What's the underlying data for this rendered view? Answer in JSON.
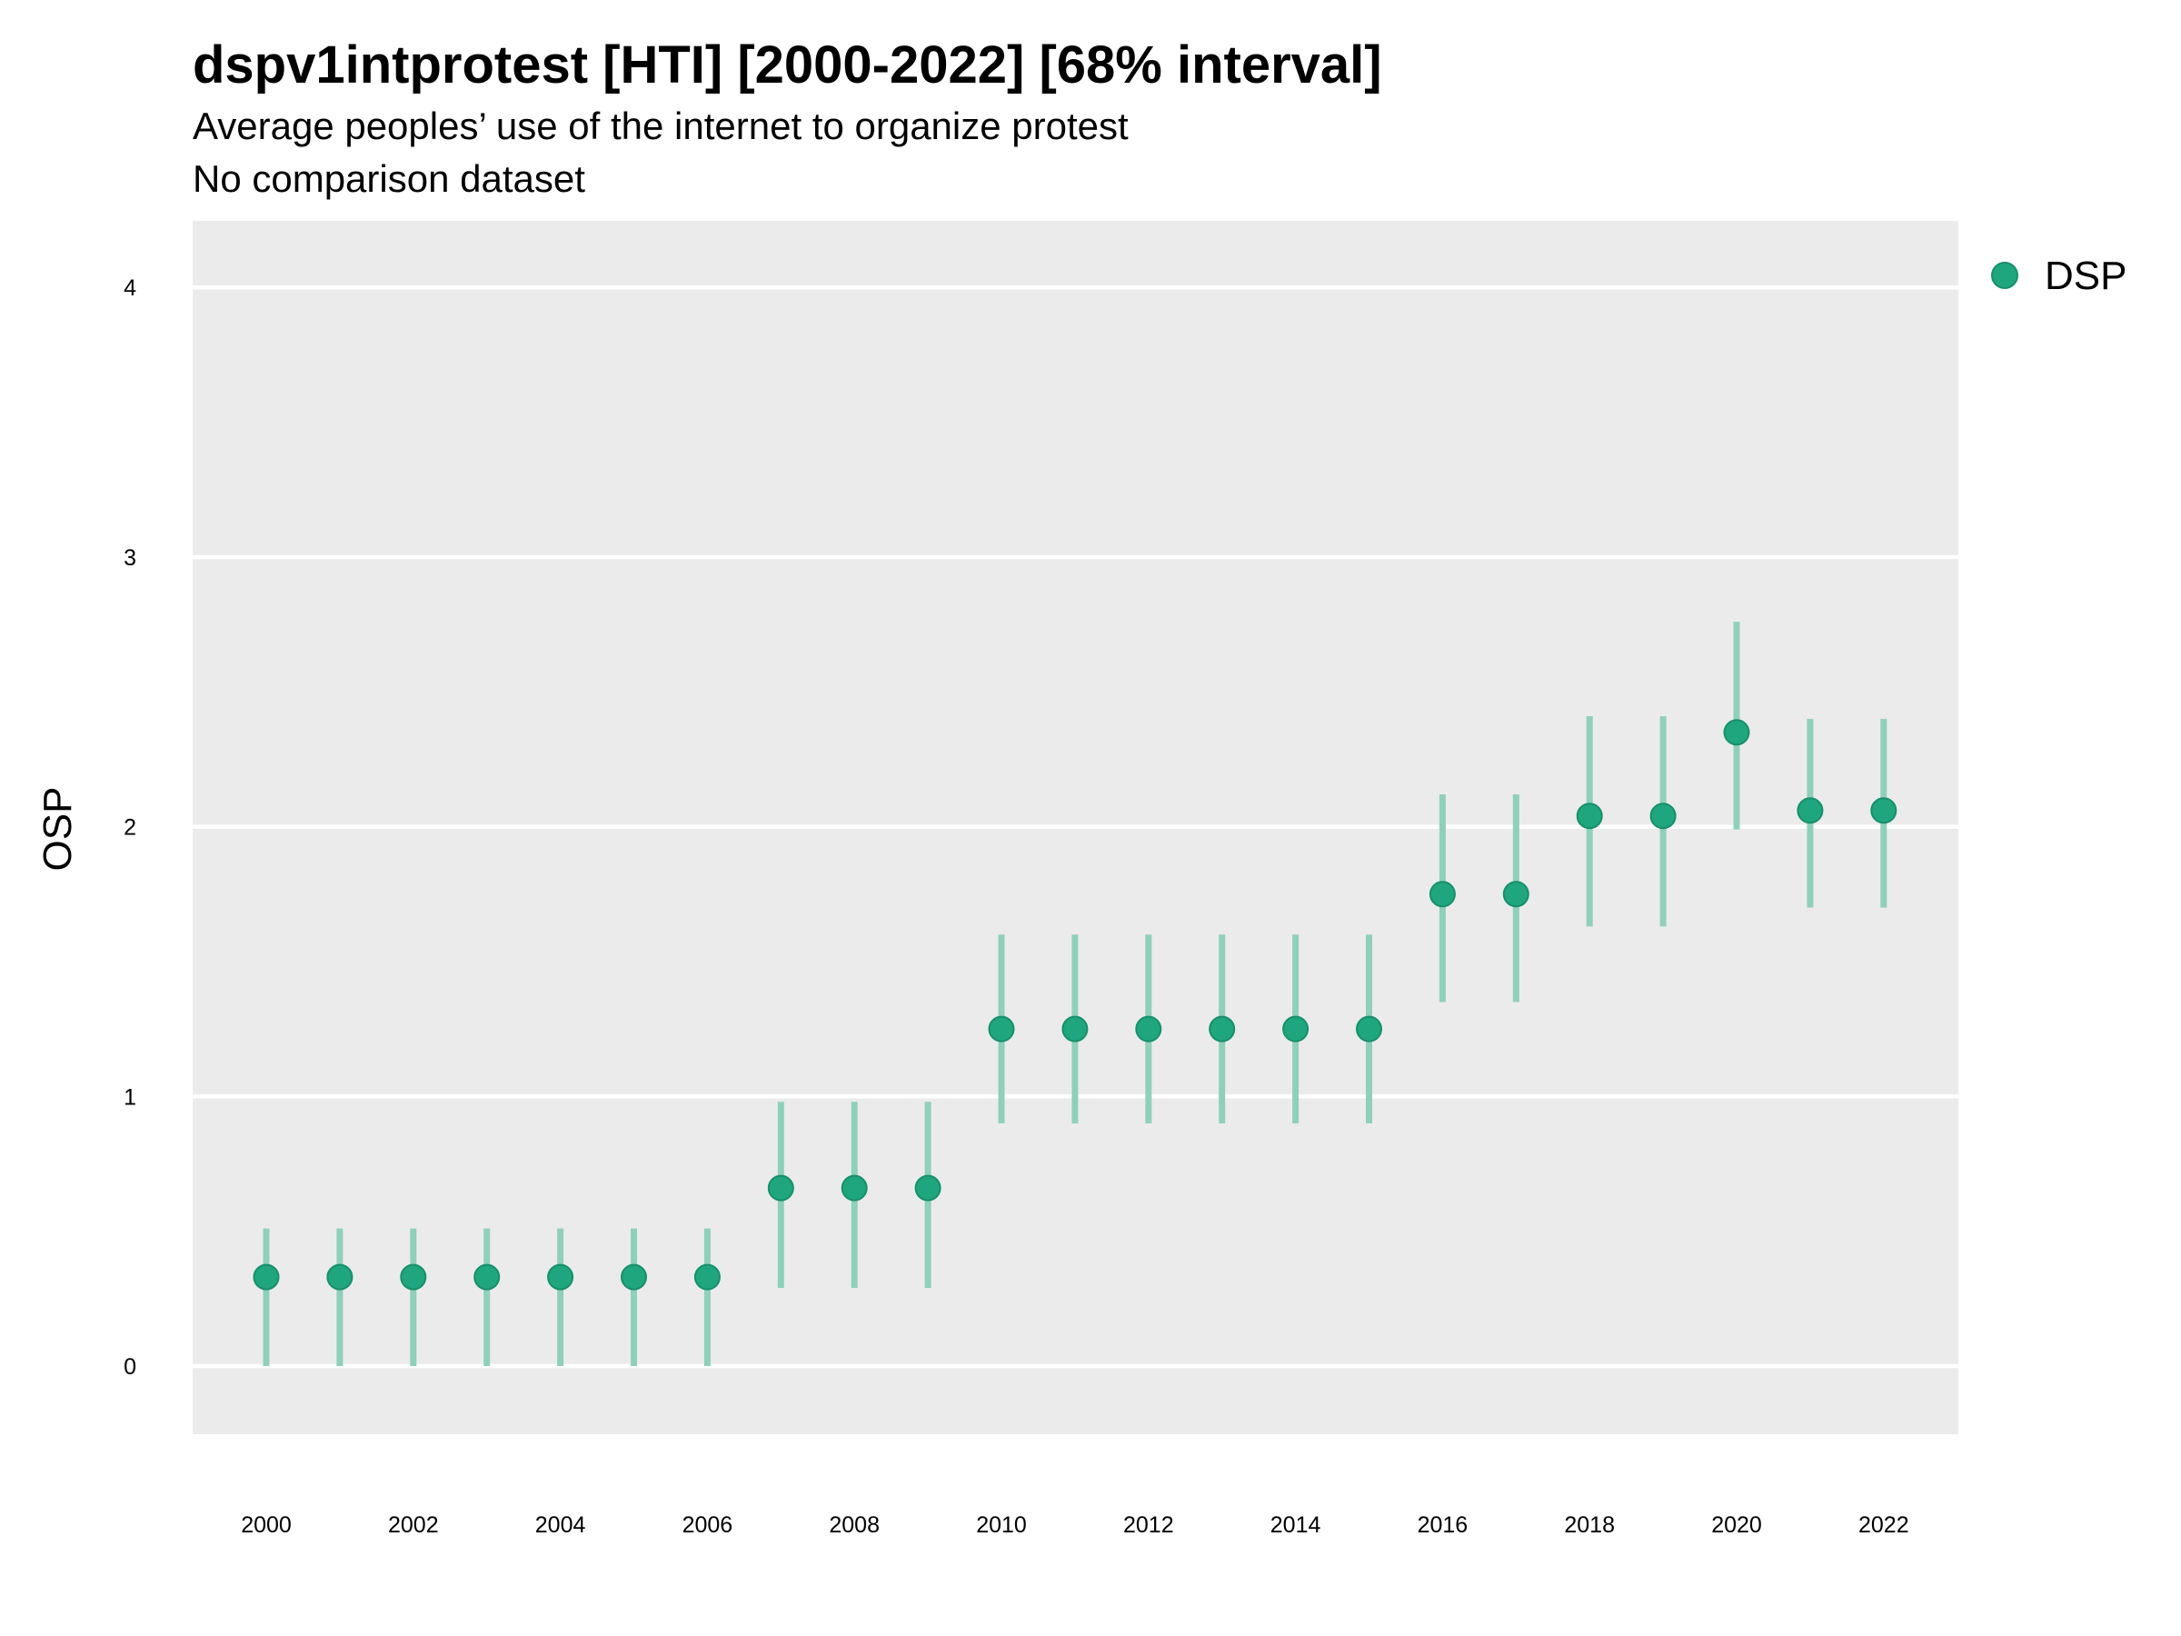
{
  "title": "dspv1intprotest [HTI] [2000-2022] [68% interval]",
  "subtitle": [
    "Average peoples’ use of the internet to organize protest",
    "No comparison dataset"
  ],
  "colors": {
    "panel_background": "#ebebeb",
    "gridline": "#ffffff",
    "point": "#1fa67f",
    "interval": "#8fd0bb"
  },
  "chart_data": {
    "type": "scatter",
    "xlabel": "",
    "ylabel": "OSP",
    "ylim": [
      -0.25,
      4.25
    ],
    "xlim": [
      1999,
      2023
    ],
    "grid": true,
    "legend_position": "top-right",
    "y_ticks": [
      "0",
      "1",
      "2",
      "3",
      "4"
    ],
    "x_ticks": [
      "2000",
      "2002",
      "2004",
      "2006",
      "2008",
      "2010",
      "2012",
      "2014",
      "2016",
      "2018",
      "2020",
      "2022"
    ],
    "series": [
      {
        "name": "DSP",
        "x": [
          2000,
          2001,
          2002,
          2003,
          2004,
          2005,
          2006,
          2007,
          2008,
          2009,
          2010,
          2011,
          2012,
          2013,
          2014,
          2015,
          2016,
          2017,
          2018,
          2019,
          2020,
          2021,
          2022
        ],
        "y": [
          0.33,
          0.33,
          0.33,
          0.33,
          0.33,
          0.33,
          0.33,
          0.66,
          0.66,
          0.66,
          1.25,
          1.25,
          1.25,
          1.25,
          1.25,
          1.25,
          1.75,
          1.75,
          2.04,
          2.04,
          2.35,
          2.06,
          2.06
        ],
        "lower": [
          0.0,
          0.0,
          0.0,
          0.0,
          0.0,
          0.0,
          0.0,
          0.29,
          0.29,
          0.29,
          0.9,
          0.9,
          0.9,
          0.9,
          0.9,
          0.9,
          1.35,
          1.35,
          1.63,
          1.63,
          1.99,
          1.7,
          1.7
        ],
        "upper": [
          0.51,
          0.51,
          0.51,
          0.51,
          0.51,
          0.51,
          0.51,
          0.98,
          0.98,
          0.98,
          1.6,
          1.6,
          1.6,
          1.6,
          1.6,
          1.6,
          2.12,
          2.12,
          2.41,
          2.41,
          2.76,
          2.4,
          2.4
        ]
      }
    ]
  }
}
